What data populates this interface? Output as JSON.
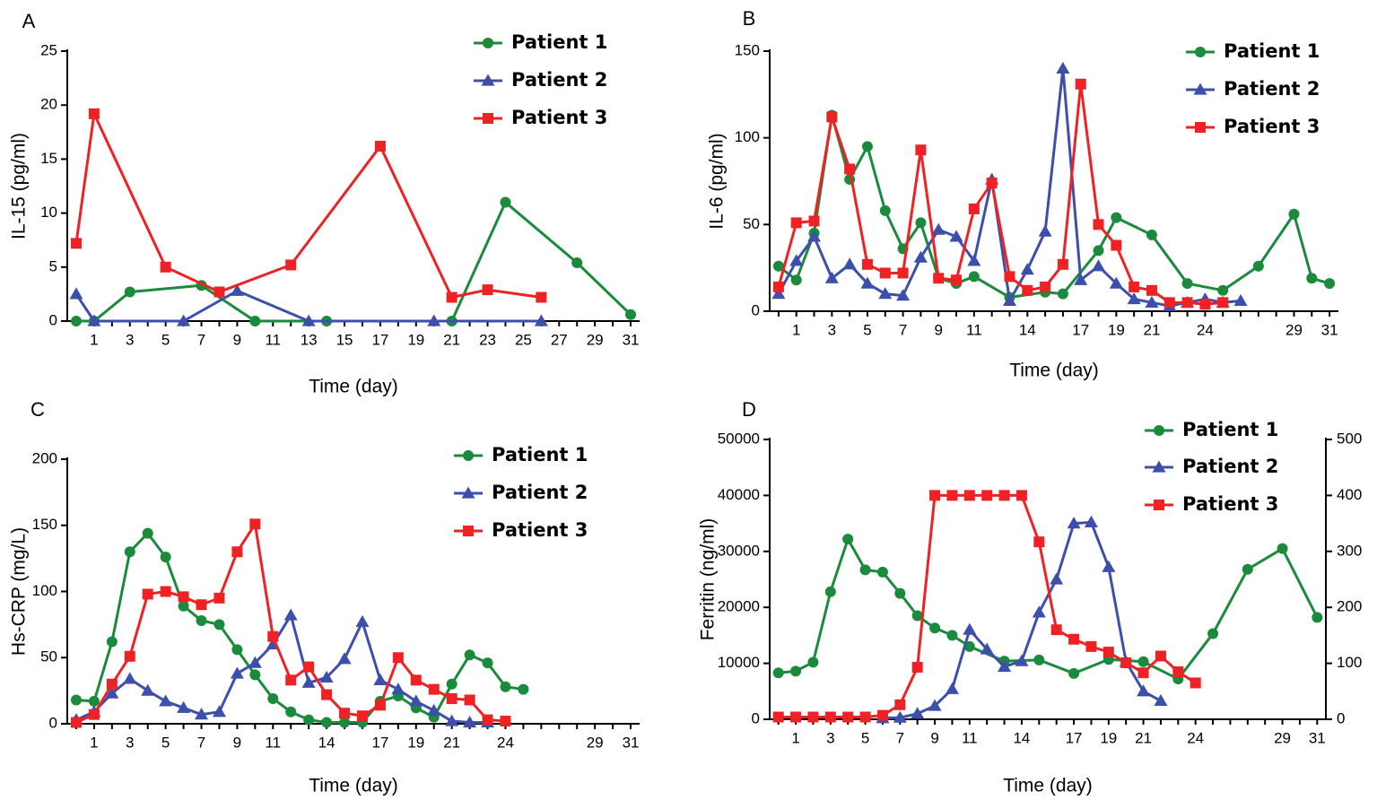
{
  "colors": {
    "patient1": "#1a8a3c",
    "patient2": "#3d4fab",
    "patient3": "#ee2225"
  },
  "chart_data": [
    {
      "panel": "A",
      "type": "line",
      "xlabel": "Time (day)",
      "ylabel": "IL-15 (pg/ml)",
      "xlim": [
        -0.5,
        31.5
      ],
      "xticks": [
        1,
        3,
        5,
        7,
        9,
        11,
        13,
        15,
        17,
        19,
        21,
        23,
        25,
        27,
        29,
        31
      ],
      "ylim": [
        0,
        25
      ],
      "yticks": [
        0,
        5,
        10,
        15,
        20,
        25
      ],
      "legend": {
        "position": "top-right",
        "entries": [
          "Patient 1",
          "Patient 2",
          "Patient 3"
        ]
      },
      "series": [
        {
          "name": "Patient 1",
          "color": "#1a8a3c",
          "marker": "circle",
          "x": [
            0,
            1,
            3,
            7,
            10,
            14,
            21,
            24,
            28,
            31
          ],
          "y": [
            0,
            0,
            2.7,
            3.3,
            0,
            0,
            0,
            11,
            5.4,
            0.6
          ]
        },
        {
          "name": "Patient 2",
          "color": "#3d4fab",
          "marker": "triangle",
          "x": [
            0,
            1,
            6,
            9,
            13,
            20,
            26
          ],
          "y": [
            2.5,
            0,
            0,
            2.8,
            0,
            0,
            0
          ]
        },
        {
          "name": "Patient 3",
          "color": "#ee2225",
          "marker": "square",
          "x": [
            0,
            1,
            5,
            8,
            12,
            17,
            21,
            23,
            26
          ],
          "y": [
            7.2,
            19.2,
            5,
            2.7,
            5.2,
            16.2,
            2.2,
            2.9,
            2.2
          ]
        }
      ]
    },
    {
      "panel": "B",
      "type": "line",
      "xlabel": "Time (day)",
      "ylabel": "IL-6 (pg/ml)",
      "xlim": [
        -0.5,
        31.5
      ],
      "xticks": [
        1,
        3,
        5,
        7,
        9,
        11,
        14,
        17,
        19,
        21,
        24,
        29,
        31
      ],
      "ylim": [
        0,
        150
      ],
      "yticks": [
        0,
        50,
        100,
        150
      ],
      "legend": {
        "position": "top-right",
        "entries": [
          "Patient 1",
          "Patient 2",
          "Patient 3"
        ]
      },
      "series": [
        {
          "name": "Patient 1",
          "color": "#1a8a3c",
          "marker": "circle",
          "x": [
            0,
            1,
            2,
            3,
            4,
            5,
            6,
            7,
            8,
            9,
            10,
            11,
            13,
            15,
            16,
            18,
            19,
            21,
            23,
            25,
            27,
            29,
            30,
            31
          ],
          "y": [
            26,
            18,
            45,
            113,
            76,
            95,
            58,
            36,
            51,
            19,
            16,
            20,
            8,
            11,
            10,
            35,
            54,
            44,
            16,
            12,
            26,
            56,
            19,
            16
          ]
        },
        {
          "name": "Patient 2",
          "color": "#3d4fab",
          "marker": "triangle",
          "x": [
            0,
            1,
            2,
            3,
            4,
            5,
            6,
            7,
            8,
            9,
            10,
            11,
            12,
            13,
            14,
            15,
            16,
            17,
            18,
            19,
            20,
            21,
            22,
            23,
            24,
            25,
            26
          ],
          "y": [
            10,
            29,
            43,
            19,
            27,
            16,
            10,
            9,
            31,
            47,
            43,
            29,
            76,
            6,
            24,
            46,
            140,
            18,
            26,
            16,
            7,
            5,
            3,
            5,
            7,
            5,
            6
          ]
        },
        {
          "name": "Patient 3",
          "color": "#ee2225",
          "marker": "square",
          "x": [
            0,
            1,
            2,
            3,
            4,
            5,
            6,
            7,
            8,
            9,
            10,
            11,
            12,
            13,
            14,
            15,
            16,
            17,
            18,
            19,
            20,
            21,
            22,
            23,
            24,
            25
          ],
          "y": [
            14,
            51,
            52,
            112,
            82,
            27,
            22,
            22,
            93,
            19,
            18,
            59,
            74,
            20,
            12,
            14,
            27,
            131,
            50,
            38,
            14,
            12,
            5,
            5,
            4,
            5
          ]
        }
      ]
    },
    {
      "panel": "C",
      "type": "line",
      "xlabel": "Time (day)",
      "ylabel": "Hs-CRP (mg/L)",
      "xlim": [
        -0.5,
        31.5
      ],
      "xticks": [
        1,
        3,
        5,
        7,
        9,
        11,
        14,
        17,
        19,
        21,
        24,
        29,
        31
      ],
      "ylim": [
        0,
        200
      ],
      "yticks": [
        0,
        50,
        100,
        150,
        200
      ],
      "legend": {
        "position": "top-right",
        "entries": [
          "Patient 1",
          "Patient 2",
          "Patient 3"
        ]
      },
      "series": [
        {
          "name": "Patient 1",
          "color": "#1a8a3c",
          "marker": "circle",
          "x": [
            0,
            1,
            2,
            3,
            4,
            5,
            6,
            7,
            8,
            9,
            10,
            11,
            12,
            13,
            14,
            15,
            16,
            17,
            18,
            19,
            20,
            21,
            22,
            23,
            24,
            25
          ],
          "y": [
            18,
            17,
            62,
            130,
            144,
            126,
            89,
            78,
            75,
            56,
            37,
            19,
            9,
            3,
            1,
            1,
            1,
            17,
            21,
            12,
            5,
            30,
            52,
            46,
            28,
            26
          ]
        },
        {
          "name": "Patient 2",
          "color": "#3d4fab",
          "marker": "triangle",
          "x": [
            0,
            1,
            2,
            3,
            4,
            5,
            6,
            7,
            8,
            9,
            10,
            11,
            12,
            13,
            14,
            15,
            16,
            17,
            18,
            19,
            20,
            21,
            22,
            23
          ],
          "y": [
            3,
            9,
            23,
            34,
            25,
            17,
            12,
            7,
            9,
            38,
            46,
            60,
            82,
            31,
            35,
            49,
            77,
            33,
            26,
            17,
            10,
            2,
            1,
            1
          ]
        },
        {
          "name": "Patient 3",
          "color": "#ee2225",
          "marker": "square",
          "x": [
            0,
            1,
            2,
            3,
            4,
            5,
            6,
            7,
            8,
            9,
            10,
            11,
            12,
            13,
            14,
            15,
            16,
            17,
            18,
            19,
            20,
            21,
            22,
            23,
            24
          ],
          "y": [
            1,
            7,
            30,
            51,
            98,
            100,
            96,
            90,
            95,
            130,
            151,
            66,
            33,
            43,
            22,
            8,
            6,
            14,
            50,
            33,
            26,
            19,
            18,
            3,
            2
          ]
        }
      ]
    },
    {
      "panel": "D",
      "type": "line",
      "xlabel": "Time (day)",
      "ylabel": "Ferritin (ng/ml)",
      "ylabel_right": "",
      "xlim": [
        -0.5,
        31.5
      ],
      "xticks": [
        1,
        3,
        5,
        7,
        9,
        11,
        14,
        17,
        19,
        21,
        24,
        29,
        31
      ],
      "ylim": [
        0,
        50000
      ],
      "yticks": [
        0,
        10000,
        20000,
        30000,
        40000,
        50000
      ],
      "ylim_right": [
        0,
        500
      ],
      "yticks_right": [
        0,
        100,
        200,
        300,
        400,
        500
      ],
      "legend": {
        "position": "top-right",
        "entries": [
          "Patient 1",
          "Patient 2",
          "Patient 3"
        ]
      },
      "series": [
        {
          "name": "Patient 1",
          "color": "#1a8a3c",
          "marker": "circle",
          "x": [
            0,
            1,
            2,
            3,
            4,
            5,
            6,
            7,
            8,
            9,
            10,
            11,
            13,
            15,
            17,
            19,
            21,
            23,
            25,
            27,
            29,
            31
          ],
          "y": [
            8300,
            8600,
            10200,
            22800,
            32200,
            26700,
            26300,
            22500,
            18500,
            16300,
            15000,
            13000,
            10400,
            10600,
            8200,
            10700,
            10300,
            7200,
            15300,
            26800,
            30500,
            18200
          ]
        },
        {
          "name": "Patient 2",
          "color": "#3d4fab",
          "marker": "triangle",
          "x": [
            6,
            7,
            8,
            9,
            10,
            11,
            12,
            13,
            14,
            15,
            16,
            17,
            18,
            19,
            20,
            21,
            22
          ],
          "y": [
            200,
            300,
            1000,
            2400,
            5400,
            16000,
            12500,
            9400,
            10400,
            19100,
            25000,
            35000,
            35200,
            27200,
            10300,
            5000,
            3300
          ]
        },
        {
          "name": "Patient 3",
          "color": "#ee2225",
          "marker": "square",
          "x": [
            0,
            1,
            2,
            3,
            4,
            5,
            6,
            7,
            8,
            9,
            10,
            11,
            12,
            13,
            14,
            15,
            16,
            17,
            18,
            19,
            20,
            21,
            22,
            23,
            24
          ],
          "y": [
            400,
            400,
            400,
            400,
            400,
            400,
            700,
            2600,
            9300,
            40000,
            40000,
            40000,
            40000,
            40000,
            40000,
            31700,
            16000,
            14300,
            13000,
            12000,
            10100,
            8300,
            11300,
            8500,
            6500
          ]
        }
      ]
    }
  ]
}
